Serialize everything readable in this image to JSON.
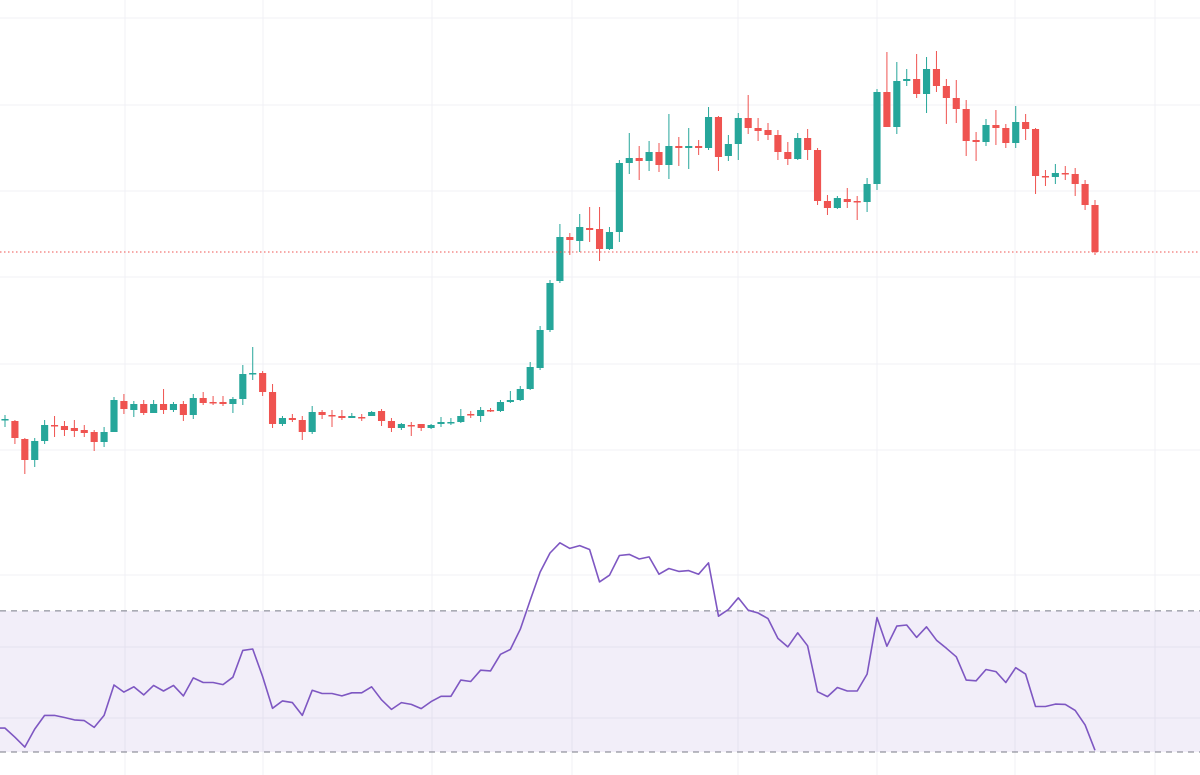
{
  "chart_data": [
    {
      "type": "candlestick",
      "title": "",
      "xlabel": "",
      "ylabel": "",
      "ylim": [
        9.5,
        60
      ],
      "grid": true,
      "colors": {
        "up": "#26a69a",
        "down": "#ef5350",
        "last_price_line": "#ef5350",
        "grid": "#f0f3fa"
      },
      "last_price": 34.8,
      "ohlc": [
        [
          18.0,
          18.5,
          17.3,
          18.1
        ],
        [
          17.9,
          18.0,
          15.6,
          16.2
        ],
        [
          16.1,
          16.2,
          12.6,
          14.0
        ],
        [
          14.0,
          16.2,
          13.3,
          15.9
        ],
        [
          15.9,
          18.0,
          15.6,
          17.5
        ],
        [
          17.5,
          18.4,
          16.3,
          17.4
        ],
        [
          17.4,
          17.9,
          16.4,
          17.0
        ],
        [
          17.2,
          18.0,
          16.3,
          16.9
        ],
        [
          17.0,
          17.5,
          16.3,
          16.7
        ],
        [
          16.8,
          17.0,
          14.9,
          15.8
        ],
        [
          15.8,
          17.3,
          15.3,
          16.8
        ],
        [
          16.8,
          20.3,
          16.8,
          20.0
        ],
        [
          19.9,
          20.6,
          18.6,
          19.1
        ],
        [
          19.0,
          19.9,
          18.3,
          19.6
        ],
        [
          19.6,
          20.0,
          18.5,
          18.7
        ],
        [
          18.7,
          20.0,
          18.7,
          19.6
        ],
        [
          19.6,
          21.1,
          18.6,
          19.0
        ],
        [
          19.0,
          19.8,
          18.8,
          19.6
        ],
        [
          19.6,
          19.9,
          17.9,
          18.5
        ],
        [
          18.5,
          20.6,
          18.1,
          20.2
        ],
        [
          20.2,
          20.8,
          19.5,
          19.7
        ],
        [
          19.8,
          20.4,
          19.5,
          19.7
        ],
        [
          19.8,
          20.4,
          19.4,
          19.6
        ],
        [
          19.6,
          20.3,
          18.7,
          20.1
        ],
        [
          20.1,
          23.5,
          19.5,
          22.6
        ],
        [
          22.6,
          25.3,
          22.0,
          22.7
        ],
        [
          22.7,
          22.9,
          20.4,
          20.8
        ],
        [
          20.8,
          21.6,
          17.2,
          17.6
        ],
        [
          17.6,
          18.4,
          17.4,
          18.2
        ],
        [
          18.2,
          18.6,
          17.8,
          18.0
        ],
        [
          18.0,
          18.4,
          16.0,
          16.8
        ],
        [
          16.8,
          19.4,
          16.6,
          18.8
        ],
        [
          18.8,
          19.0,
          18.1,
          18.5
        ],
        [
          18.5,
          19.0,
          17.3,
          18.4
        ],
        [
          18.4,
          19.0,
          18.0,
          18.2
        ],
        [
          18.2,
          18.7,
          18.2,
          18.4
        ],
        [
          18.3,
          18.6,
          17.9,
          18.2
        ],
        [
          18.4,
          18.9,
          18.4,
          18.8
        ],
        [
          18.9,
          19.1,
          17.4,
          17.9
        ],
        [
          17.9,
          18.2,
          16.8,
          17.2
        ],
        [
          17.2,
          17.7,
          17.0,
          17.6
        ],
        [
          17.5,
          17.8,
          16.4,
          17.4
        ],
        [
          17.6,
          17.6,
          16.9,
          17.2
        ],
        [
          17.2,
          17.6,
          17.1,
          17.5
        ],
        [
          17.6,
          18.3,
          17.3,
          17.8
        ],
        [
          17.7,
          18.2,
          17.5,
          17.8
        ],
        [
          17.8,
          19.1,
          17.7,
          18.4
        ],
        [
          18.6,
          18.9,
          18.2,
          18.5
        ],
        [
          18.4,
          19.3,
          17.8,
          19.0
        ],
        [
          19.0,
          19.2,
          18.8,
          18.9
        ],
        [
          18.9,
          20.0,
          18.8,
          19.8
        ],
        [
          19.8,
          20.9,
          19.7,
          20.0
        ],
        [
          20.0,
          21.4,
          19.9,
          21.1
        ],
        [
          21.1,
          23.8,
          21.0,
          23.3
        ],
        [
          23.2,
          27.4,
          23.0,
          27.0
        ],
        [
          27.0,
          32.0,
          26.8,
          31.7
        ],
        [
          31.9,
          37.6,
          31.7,
          36.3
        ],
        [
          36.3,
          36.7,
          34.5,
          36.0
        ],
        [
          35.9,
          38.6,
          34.8,
          37.3
        ],
        [
          37.2,
          39.3,
          35.8,
          37.0
        ],
        [
          37.1,
          39.3,
          33.9,
          35.1
        ],
        [
          35.1,
          37.3,
          35.0,
          36.8
        ],
        [
          36.8,
          44.0,
          35.8,
          43.7
        ],
        [
          43.7,
          46.7,
          42.6,
          44.2
        ],
        [
          44.2,
          45.4,
          42.0,
          43.9
        ],
        [
          43.9,
          45.9,
          42.9,
          44.8
        ],
        [
          44.8,
          45.7,
          42.8,
          43.5
        ],
        [
          43.5,
          48.6,
          42.1,
          45.4
        ],
        [
          45.4,
          46.3,
          43.4,
          45.2
        ],
        [
          45.2,
          47.2,
          43.1,
          45.4
        ],
        [
          45.4,
          46.0,
          44.5,
          45.2
        ],
        [
          45.2,
          49.3,
          45.0,
          48.3
        ],
        [
          48.3,
          48.4,
          42.9,
          44.3
        ],
        [
          44.4,
          46.5,
          43.9,
          45.6
        ],
        [
          45.6,
          48.7,
          44.0,
          48.2
        ],
        [
          48.2,
          50.5,
          46.6,
          47.2
        ],
        [
          47.2,
          48.2,
          45.9,
          46.9
        ],
        [
          47.0,
          47.7,
          46.0,
          46.5
        ],
        [
          46.5,
          47.0,
          44.0,
          44.8
        ],
        [
          44.8,
          45.8,
          43.5,
          44.1
        ],
        [
          44.1,
          46.7,
          44.0,
          46.2
        ],
        [
          46.2,
          47.1,
          44.0,
          45.0
        ],
        [
          45.0,
          45.2,
          39.5,
          39.9
        ],
        [
          39.9,
          40.5,
          38.5,
          39.2
        ],
        [
          39.2,
          40.4,
          39.1,
          40.2
        ],
        [
          40.1,
          41.2,
          39.2,
          39.8
        ],
        [
          39.9,
          40.4,
          38.0,
          39.8
        ],
        [
          39.8,
          42.2,
          38.8,
          41.6
        ],
        [
          41.6,
          51.1,
          41.0,
          50.8
        ],
        [
          50.8,
          54.8,
          47.3,
          47.3
        ],
        [
          47.3,
          53.8,
          46.6,
          51.9
        ],
        [
          51.9,
          53.1,
          51.4,
          52.1
        ],
        [
          52.1,
          54.6,
          50.2,
          50.6
        ],
        [
          50.6,
          54.3,
          48.7,
          53.1
        ],
        [
          53.1,
          54.9,
          50.8,
          51.4
        ],
        [
          51.4,
          52.1,
          47.6,
          50.2
        ],
        [
          50.2,
          52.0,
          47.7,
          49.1
        ],
        [
          49.1,
          50.0,
          44.4,
          45.9
        ],
        [
          46.0,
          46.8,
          43.9,
          45.8
        ],
        [
          45.8,
          48.1,
          45.4,
          47.5
        ],
        [
          47.5,
          49.0,
          45.5,
          47.2
        ],
        [
          47.2,
          47.6,
          45.2,
          45.7
        ],
        [
          45.7,
          49.4,
          45.2,
          47.8
        ],
        [
          47.8,
          48.6,
          46.0,
          47.1
        ],
        [
          47.1,
          47.2,
          40.6,
          42.4
        ],
        [
          42.4,
          43.0,
          41.4,
          42.3
        ],
        [
          42.3,
          43.6,
          41.6,
          42.7
        ],
        [
          42.7,
          43.4,
          42.0,
          42.6
        ],
        [
          42.6,
          43.2,
          40.4,
          41.6
        ],
        [
          41.6,
          42.0,
          39.0,
          39.5
        ],
        [
          39.5,
          40.0,
          34.5,
          34.8
        ]
      ]
    },
    {
      "type": "line",
      "title": "",
      "name": "RSI",
      "ylim": [
        23.5,
        100
      ],
      "upper_band": 70,
      "lower_band": 30,
      "colors": {
        "line": "#7e57c2",
        "band_fill": "#7e57c2",
        "band_line": "#787b86"
      },
      "values": [
        36.8,
        34.2,
        31.4,
        36.5,
        40.4,
        40.4,
        39.8,
        39.1,
        38.9,
        37.0,
        40.4,
        49.0,
        47.0,
        48.5,
        46.2,
        48.9,
        47.3,
        48.9,
        45.9,
        51.0,
        49.7,
        49.7,
        49.1,
        51.2,
        58.8,
        59.2,
        51.4,
        42.4,
        44.5,
        44.0,
        40.4,
        47.5,
        46.6,
        46.6,
        45.9,
        46.8,
        46.8,
        48.5,
        44.8,
        42.1,
        44.0,
        43.5,
        42.3,
        44.3,
        45.8,
        45.8,
        50.4,
        50.0,
        53.2,
        53.0,
        57.7,
        59.1,
        64.8,
        73.0,
        81.0,
        86.4,
        89.3,
        87.7,
        88.5,
        87.4,
        78.2,
        80.1,
        85.7,
        86.0,
        84.7,
        85.3,
        80.4,
        82.0,
        81.2,
        81.4,
        80.4,
        83.6,
        68.5,
        70.4,
        73.7,
        70.2,
        69.4,
        67.8,
        62.2,
        59.8,
        63.8,
        60.1,
        47.1,
        45.7,
        48.3,
        47.3,
        47.3,
        52.1,
        68.1,
        60.0,
        65.7,
        66.0,
        62.5,
        65.5,
        61.7,
        59.4,
        57.0,
        50.4,
        50.2,
        53.4,
        52.8,
        49.7,
        53.9,
        52.1,
        42.9,
        42.9,
        43.6,
        43.5,
        41.8,
        37.7,
        30.5
      ]
    }
  ]
}
